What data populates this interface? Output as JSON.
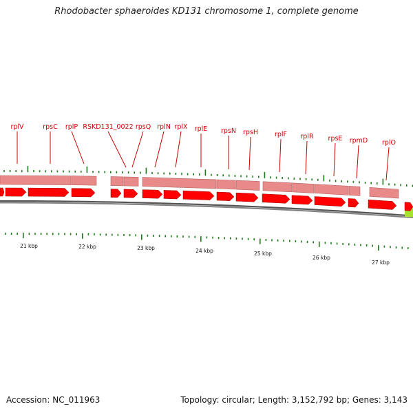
{
  "title": "Rhodobacter sphaeroides KD131 chromosome 1, complete genome",
  "accession": "Accession: NC_011963",
  "summary": "Topology: circular; Length: 3,152,792 bp; Genes: 3,143",
  "colors": {
    "cds_arrow": "#ff0000",
    "gene_bar": "#e98a8a",
    "other_feature": "#a6e22e",
    "tick": "#1a7a1a",
    "backbone": "#808080",
    "label": "#cc0000"
  },
  "gene_labels": [
    "rplV",
    "rpsC",
    "rplP",
    "RSKD131_0022",
    "rpsQ",
    "rplN",
    "rplX",
    "rplE",
    "rpsN",
    "rpsH",
    "rplF",
    "rplR",
    "rpsE",
    "rpmD",
    "rplO"
  ],
  "kbp_labels": [
    "21 kbp",
    "22 kbp",
    "23 kbp",
    "24 kbp",
    "25 kbp",
    "26 kbp",
    "27 kbp"
  ]
}
